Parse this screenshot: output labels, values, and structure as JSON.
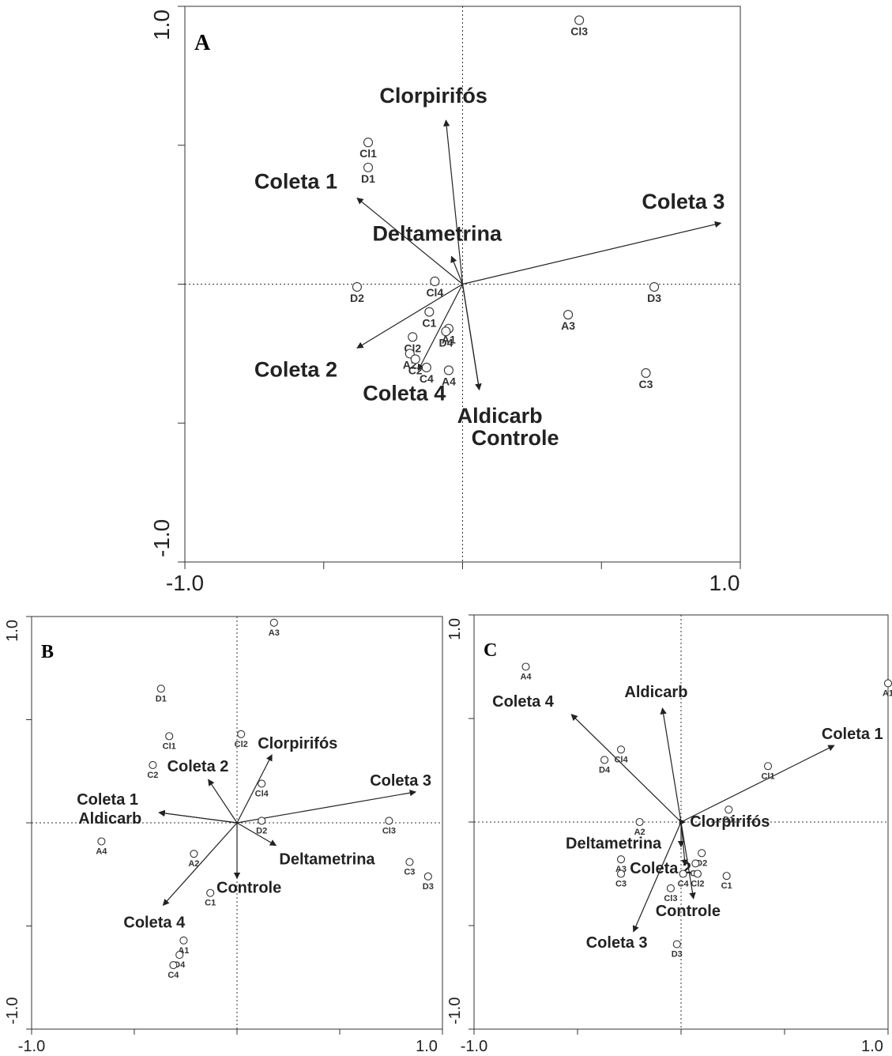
{
  "chart_data": [
    {
      "type": "scatter",
      "panel_label": "A",
      "xlim": [
        -1.0,
        1.0
      ],
      "ylim": [
        -1.0,
        1.0
      ],
      "x_tick_labels": [
        "-1.0",
        "1.0"
      ],
      "y_tick_labels": [
        "1.0",
        "-1.0"
      ],
      "vectors": [
        {
          "name": "Clorpirifós",
          "x": -0.06,
          "y": 0.59
        },
        {
          "name": "Coleta 1",
          "x": -0.38,
          "y": 0.31
        },
        {
          "name": "Coleta 3",
          "x": 0.93,
          "y": 0.22
        },
        {
          "name": "Deltametrina",
          "x": -0.04,
          "y": 0.1
        },
        {
          "name": "Coleta 2",
          "x": -0.38,
          "y": -0.23
        },
        {
          "name": "Coleta 4",
          "x": -0.16,
          "y": -0.31
        },
        {
          "name": "Aldicarb",
          "x": 0.06,
          "y": -0.38
        },
        {
          "name": "Controle",
          "x": 0.06,
          "y": -0.38
        }
      ],
      "points": [
        {
          "name": "Cl3",
          "x": 0.42,
          "y": 0.95
        },
        {
          "name": "Cl1",
          "x": -0.34,
          "y": 0.51
        },
        {
          "name": "D1",
          "x": -0.34,
          "y": 0.42
        },
        {
          "name": "D2",
          "x": -0.38,
          "y": -0.01
        },
        {
          "name": "Cl4",
          "x": -0.1,
          "y": 0.01
        },
        {
          "name": "D3",
          "x": 0.69,
          "y": -0.01
        },
        {
          "name": "C1",
          "x": -0.12,
          "y": -0.1
        },
        {
          "name": "Cl2",
          "x": -0.18,
          "y": -0.19
        },
        {
          "name": "A1",
          "x": -0.05,
          "y": -0.16
        },
        {
          "name": "D4",
          "x": -0.06,
          "y": -0.17
        },
        {
          "name": "A3",
          "x": 0.38,
          "y": -0.11
        },
        {
          "name": "A2",
          "x": -0.19,
          "y": -0.25
        },
        {
          "name": "C2",
          "x": -0.17,
          "y": -0.27
        },
        {
          "name": "C4",
          "x": -0.13,
          "y": -0.3
        },
        {
          "name": "A4",
          "x": -0.05,
          "y": -0.31
        },
        {
          "name": "C3",
          "x": 0.66,
          "y": -0.32
        }
      ]
    },
    {
      "type": "scatter",
      "panel_label": "B",
      "xlim": [
        -1.0,
        1.0
      ],
      "ylim": [
        -1.0,
        1.0
      ],
      "x_tick_labels": [
        "-1.0",
        "1.0"
      ],
      "y_tick_labels": [
        "1.0",
        "-1.0"
      ],
      "vectors": [
        {
          "name": "Clorpirifós",
          "x": 0.17,
          "y": 0.33
        },
        {
          "name": "Coleta 2",
          "x": -0.14,
          "y": 0.21
        },
        {
          "name": "Coleta 3",
          "x": 0.87,
          "y": 0.15
        },
        {
          "name": "Coleta 1",
          "x": -0.38,
          "y": 0.05
        },
        {
          "name": "Aldicarb",
          "x": -0.38,
          "y": 0.05
        },
        {
          "name": "Deltametrina",
          "x": 0.19,
          "y": -0.11
        },
        {
          "name": "Controle",
          "x": 0.0,
          "y": -0.27
        },
        {
          "name": "Coleta 4",
          "x": -0.36,
          "y": -0.4
        }
      ],
      "points": [
        {
          "name": "A3",
          "x": 0.18,
          "y": 0.97
        },
        {
          "name": "D1",
          "x": -0.37,
          "y": 0.65
        },
        {
          "name": "Cl1",
          "x": -0.33,
          "y": 0.42
        },
        {
          "name": "Cl2",
          "x": 0.02,
          "y": 0.43
        },
        {
          "name": "C2",
          "x": -0.41,
          "y": 0.28
        },
        {
          "name": "Cl4",
          "x": 0.12,
          "y": 0.19
        },
        {
          "name": "Cl3",
          "x": 0.74,
          "y": 0.01
        },
        {
          "name": "D2",
          "x": 0.12,
          "y": 0.01
        },
        {
          "name": "A4",
          "x": -0.66,
          "y": -0.09
        },
        {
          "name": "A2",
          "x": -0.21,
          "y": -0.15
        },
        {
          "name": "C3",
          "x": 0.84,
          "y": -0.19
        },
        {
          "name": "D3",
          "x": 0.93,
          "y": -0.26
        },
        {
          "name": "C1",
          "x": -0.13,
          "y": -0.34
        },
        {
          "name": "A1",
          "x": -0.26,
          "y": -0.57
        },
        {
          "name": "D4",
          "x": -0.28,
          "y": -0.64
        },
        {
          "name": "C4",
          "x": -0.31,
          "y": -0.69
        }
      ]
    },
    {
      "type": "scatter",
      "panel_label": "C",
      "xlim": [
        -1.0,
        1.0
      ],
      "ylim": [
        -1.0,
        1.0
      ],
      "x_tick_labels": [
        "-1.0",
        "1.0"
      ],
      "y_tick_labels": [
        "1.0",
        "-1.0"
      ],
      "vectors": [
        {
          "name": "Coleta 4",
          "x": -0.53,
          "y": 0.52
        },
        {
          "name": "Aldicarb",
          "x": -0.09,
          "y": 0.55
        },
        {
          "name": "Coleta 1",
          "x": 0.74,
          "y": 0.37
        },
        {
          "name": "Clorpirifós",
          "x": 0.02,
          "y": 0.0
        },
        {
          "name": "Deltametrina",
          "x": 0.0,
          "y": -0.12
        },
        {
          "name": "Coleta 2",
          "x": 0.02,
          "y": -0.21
        },
        {
          "name": "Controle",
          "x": 0.06,
          "y": -0.37
        },
        {
          "name": "Coleta 3",
          "x": -0.23,
          "y": -0.53
        }
      ],
      "points": [
        {
          "name": "A4",
          "x": -0.75,
          "y": 0.75
        },
        {
          "name": "A1",
          "x": 1.0,
          "y": 0.67
        },
        {
          "name": "Cl4",
          "x": -0.29,
          "y": 0.35
        },
        {
          "name": "D4",
          "x": -0.37,
          "y": 0.3
        },
        {
          "name": "Cl1",
          "x": 0.42,
          "y": 0.27
        },
        {
          "name": "D1",
          "x": 0.23,
          "y": 0.06
        },
        {
          "name": "A2",
          "x": -0.2,
          "y": 0.0
        },
        {
          "name": "D2",
          "x": 0.1,
          "y": -0.15
        },
        {
          "name": "A3",
          "x": -0.29,
          "y": -0.18
        },
        {
          "name": "C2",
          "x": 0.07,
          "y": -0.2
        },
        {
          "name": "C3",
          "x": -0.29,
          "y": -0.25
        },
        {
          "name": "C4",
          "x": 0.01,
          "y": -0.25
        },
        {
          "name": "Cl2",
          "x": 0.08,
          "y": -0.25
        },
        {
          "name": "C1",
          "x": 0.22,
          "y": -0.26
        },
        {
          "name": "Cl3",
          "x": -0.05,
          "y": -0.32
        },
        {
          "name": "D3",
          "x": -0.02,
          "y": -0.59
        }
      ]
    }
  ]
}
